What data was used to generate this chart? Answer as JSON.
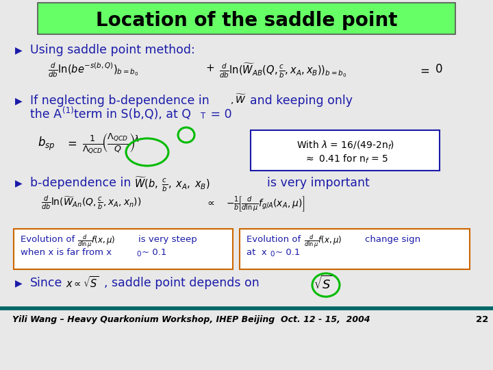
{
  "title": "Location of the saddle point",
  "title_bg_color": "#66ff66",
  "title_fontsize": 20,
  "bg_color": "#e8e8e8",
  "text_color": "#1a1aaa",
  "bullet_color": "#1a1aaa",
  "footer_text": "Yili Wang – Heavy Quarkonium Workshop, IHEP Beijing  Oct. 12 - 15,  2004",
  "footer_number": "22",
  "footer_line_color": "#006666",
  "box_color": "#cc6600",
  "lambda_box_color": "#1a1aaa",
  "green_circle_color": "#00bb00",
  "white": "#ffffff"
}
